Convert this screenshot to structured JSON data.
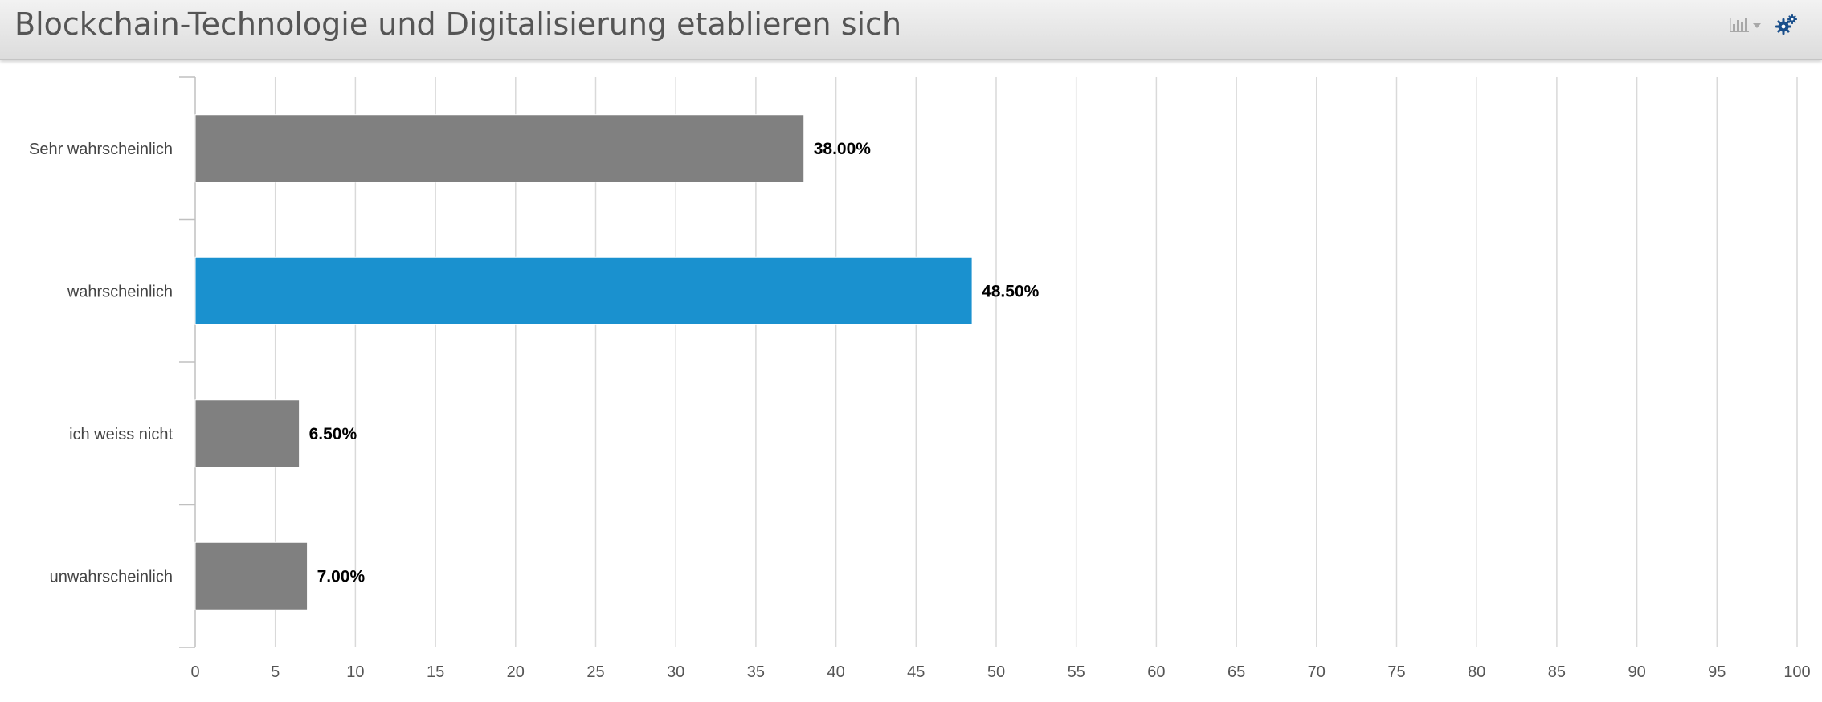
{
  "header": {
    "title": "Blockchain-Technologie und Digitalisierung etablieren sich",
    "chart_menu_icon": "bar-chart-icon",
    "settings_icon": "gears-icon",
    "accent_color": "#1a4f8b"
  },
  "chart_data": {
    "type": "bar",
    "orientation": "horizontal",
    "title": "Blockchain-Technologie und Digitalisierung etablieren sich",
    "categories": [
      "Sehr wahrscheinlich",
      "wahrscheinlich",
      "ich weiss nicht",
      "unwahrscheinlich"
    ],
    "values": [
      38.0,
      48.5,
      6.5,
      7.0
    ],
    "value_labels": [
      "38.00%",
      "48.50%",
      "6.50%",
      "7.00%"
    ],
    "colors": [
      "#808080",
      "#1a91cf",
      "#808080",
      "#808080"
    ],
    "xlim": [
      0,
      100
    ],
    "xticks": [
      0,
      5,
      10,
      15,
      20,
      25,
      30,
      35,
      40,
      45,
      50,
      55,
      60,
      65,
      70,
      75,
      80,
      85,
      90,
      95,
      100
    ],
    "grid": true,
    "xlabel": "",
    "ylabel": ""
  }
}
